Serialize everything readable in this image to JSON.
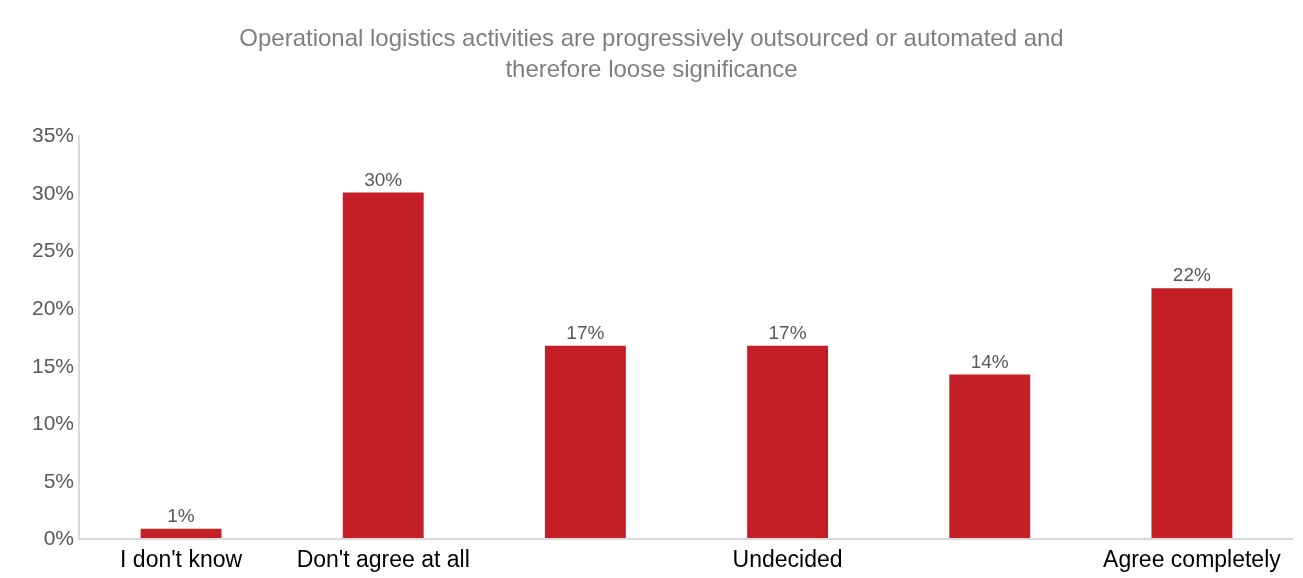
{
  "chart_data": {
    "type": "bar",
    "title": "Operational logistics activities are progressively outsourced or automated and therefore loose significance",
    "categories": [
      "I don't know",
      "Don't agree at all",
      null,
      "Undecided",
      null,
      "Agree completely"
    ],
    "values": [
      0.8,
      30,
      16.7,
      16.7,
      14.2,
      21.7
    ],
    "value_labels": [
      "1%",
      "30%",
      "17%",
      "17%",
      "14%",
      "22%"
    ],
    "color": "#c41f26",
    "ylim": [
      0,
      35
    ],
    "yticks": [
      {
        "value": 0,
        "label": "0%"
      },
      {
        "value": 5,
        "label": "5%"
      },
      {
        "value": 10,
        "label": "10%"
      },
      {
        "value": 15,
        "label": "15%"
      },
      {
        "value": 20,
        "label": "20%"
      },
      {
        "value": 25,
        "label": "25%"
      },
      {
        "value": 30,
        "label": "30%"
      },
      {
        "value": 35,
        "label": "35%"
      }
    ],
    "grid": false,
    "legend": false
  }
}
